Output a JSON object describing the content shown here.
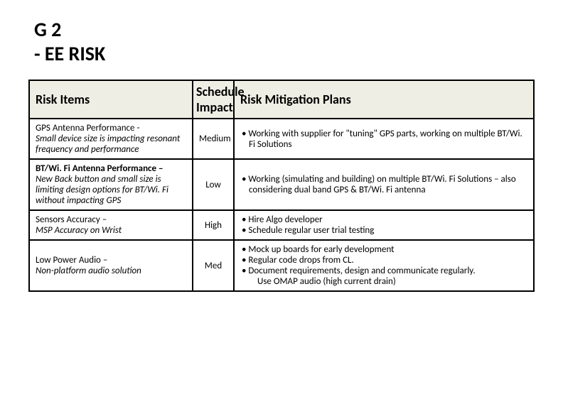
{
  "title_line1": "G 2",
  "title_line2": "- EE RISK",
  "headers": {
    "col1": "Risk Items",
    "col2": "Schedule Impact",
    "col3": "Risk Mitigation Plans"
  },
  "rows": [
    {
      "item_title": "GPS Antenna Performance - ",
      "item_desc": "Small device size is impacting resonant frequency and performance",
      "impact": "Medium",
      "plans": [
        "• Working with supplier for \"tuning\" GPS parts, working on multiple BT/Wi. Fi Solutions"
      ]
    },
    {
      "item_title": "BT/Wi. Fi Antenna Performance – ",
      "item_desc": "New Back button and small size is limiting design options for BT/Wi. Fi without impacting GPS",
      "impact": "Low",
      "plans": [
        "• Working (simulating and building) on multiple BT/Wi. Fi Solutions – also considering dual band GPS & BT/Wi. Fi antenna"
      ]
    },
    {
      "item_title": "Sensors Accuracy – ",
      "item_desc": "MSP Accuracy on Wrist",
      "impact": "High",
      "plans": [
        "• Hire Algo developer",
        "• Schedule regular user trial testing"
      ]
    },
    {
      "item_title": "Low Power Audio – ",
      "item_desc": "Non-platform audio solution",
      "impact": "Med",
      "plans": [
        "• Mock up boards for early development",
        "• Regular code drops from CL.",
        "• Document requirements, design and communicate regularly.",
        "  Use OMAP audio (high current drain)"
      ]
    }
  ],
  "colors": {
    "header_bg": "#eeeee4",
    "border": "#000000",
    "text": "#000000",
    "background": "#ffffff"
  },
  "typography": {
    "title_fontsize": 28,
    "header_fontsize": 18,
    "cell_fontsize": 13,
    "font_family": "Calibri"
  }
}
